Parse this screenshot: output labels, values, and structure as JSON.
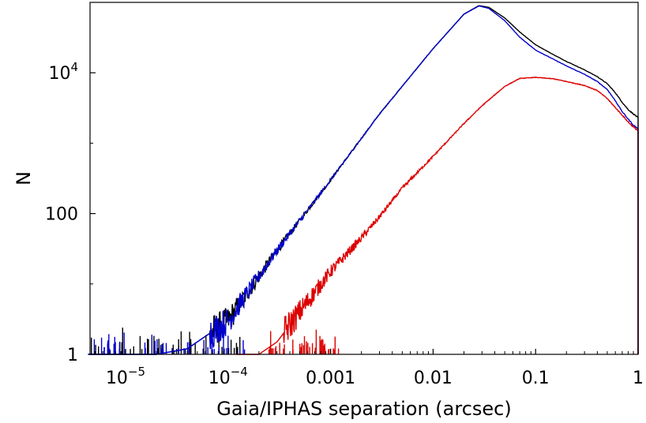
{
  "chart_data": {
    "type": "line",
    "xscale": "log",
    "yscale": "log",
    "xlim": [
      4.5e-06,
      1
    ],
    "ylim": [
      1,
      100000
    ],
    "xlabel": "Gaia/IPHAS separation (arcsec)",
    "ylabel": "N",
    "grid": false,
    "x_ticks": [
      {
        "value": 1e-05,
        "base": "10",
        "exp": "−5"
      },
      {
        "value": 0.0001,
        "base": "10",
        "exp": "−4"
      },
      {
        "value": 0.001,
        "label": "0.001"
      },
      {
        "value": 0.01,
        "label": "0.01"
      },
      {
        "value": 0.1,
        "label": "0.1"
      },
      {
        "value": 1,
        "label": "1"
      }
    ],
    "y_ticks": [
      {
        "value": 1,
        "label": "1"
      },
      {
        "value": 100,
        "label": "100"
      },
      {
        "value": 10000,
        "base": "10",
        "exp": "4"
      }
    ],
    "series": [
      {
        "color": "#000000",
        "x": [
          4.3e-06,
          8e-06,
          1.2e-05,
          2e-05,
          4e-05,
          0.0001,
          0.0003,
          0.001,
          0.003,
          0.01,
          0.02,
          0.028,
          0.035,
          0.05,
          0.07,
          0.1,
          0.15,
          0.2,
          0.3,
          0.4,
          0.5,
          0.6,
          0.7,
          0.8,
          0.9,
          1.0
        ],
        "y": [
          1,
          1,
          1,
          1,
          1.2,
          3,
          30,
          300,
          2600,
          22000,
          68000,
          90000,
          85000,
          60000,
          38000,
          25000,
          18000,
          14500,
          11000,
          8800,
          7000,
          5200,
          3800,
          3000,
          2600,
          2300
        ]
      },
      {
        "color": "#0000cc",
        "x": [
          4.3e-06,
          8e-06,
          1.2e-05,
          2e-05,
          4e-05,
          0.0001,
          0.0003,
          0.001,
          0.003,
          0.01,
          0.02,
          0.028,
          0.035,
          0.05,
          0.07,
          0.1,
          0.15,
          0.2,
          0.3,
          0.4,
          0.5,
          0.6,
          0.7,
          0.8,
          0.9,
          1.0
        ],
        "y": [
          1,
          1,
          1,
          1,
          1.2,
          3,
          30,
          300,
          2600,
          22000,
          68000,
          89000,
          82000,
          55000,
          32000,
          21000,
          15500,
          12500,
          9500,
          7500,
          5800,
          4000,
          2800,
          2200,
          1800,
          1600
        ]
      },
      {
        "color": "#dd0000",
        "x": [
          0.00012,
          0.0002,
          0.0003,
          0.0005,
          0.001,
          0.002,
          0.003,
          0.005,
          0.01,
          0.02,
          0.03,
          0.05,
          0.07,
          0.1,
          0.15,
          0.2,
          0.3,
          0.4,
          0.5,
          0.6,
          0.7,
          0.8,
          0.9,
          1.0
        ],
        "y": [
          1,
          1,
          1.5,
          4,
          15,
          45,
          90,
          230,
          650,
          1900,
          3400,
          6400,
          8300,
          8600,
          8200,
          7500,
          6600,
          5600,
          4300,
          3200,
          2500,
          2000,
          1700,
          1500
        ]
      }
    ]
  }
}
